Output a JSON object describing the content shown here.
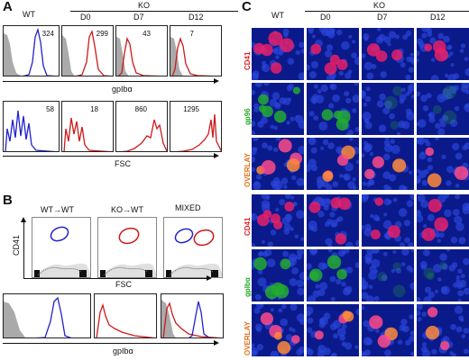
{
  "panelA": {
    "letter": "A",
    "wt_label": "WT",
    "ko_label": "KO",
    "columns": [
      "D0",
      "D7",
      "D12"
    ],
    "row1_values": [
      "324",
      "299",
      "43",
      "7"
    ],
    "row1_axis": "gpIbα",
    "row2_values": [
      "58",
      "18",
      "860",
      "1295"
    ],
    "row2_axis": "FSC"
  },
  "panelB": {
    "letter": "B",
    "titles": [
      "WT→WT",
      "KO→WT",
      "MIXED"
    ],
    "y_axis": "CD41",
    "x_axis_top": "FSC",
    "x_axis_bottom": "gpIbα"
  },
  "panelC": {
    "letter": "C",
    "wt_label": "WT",
    "ko_label": "KO",
    "columns": [
      "D0",
      "D7",
      "D12"
    ],
    "rows": [
      {
        "label": "CD41",
        "color": "#e02020"
      },
      {
        "label": "gp96",
        "color": "#22aa22"
      },
      {
        "label": "OVERLAY",
        "color": "#e07018"
      },
      {
        "label": "CD41",
        "color": "#e02020"
      },
      {
        "label": "gpIbα",
        "color": "#22aa22"
      },
      {
        "label": "OVERLAY",
        "color": "#e07018"
      }
    ]
  },
  "colors": {
    "wt": "#2222cc",
    "ko": "#cc1a1a",
    "nucleus": "#1a2fb8"
  }
}
